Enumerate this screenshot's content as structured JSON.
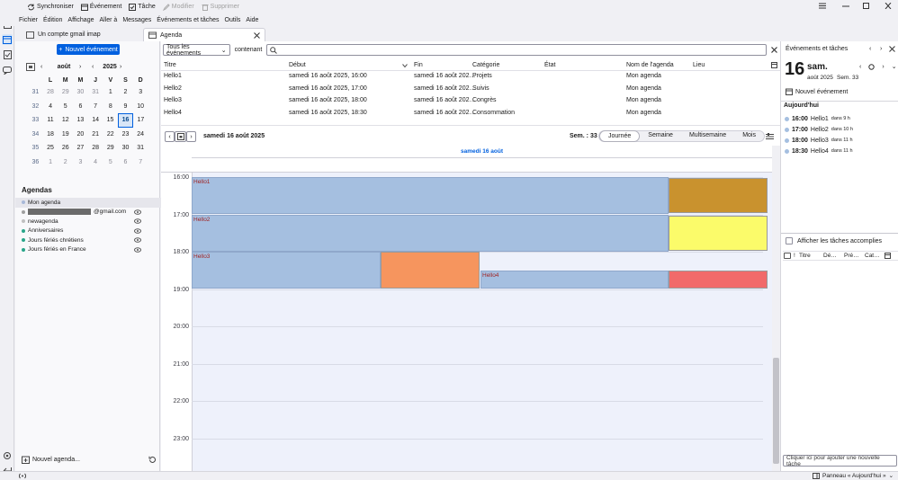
{
  "toolbar": {
    "sync": "Synchroniser",
    "event": "Événement",
    "task": "Tâche",
    "modify": "Modifier",
    "delete": "Supprimer"
  },
  "menu": [
    "Fichier",
    "Édition",
    "Affichage",
    "Aller à",
    "Messages",
    "Événements et tâches",
    "Outils",
    "Aide"
  ],
  "tabs": {
    "mail": "Un compte gmail imap",
    "agenda": "Agenda"
  },
  "sidebar": {
    "new_event": "Nouvel événement",
    "month": "août",
    "year": "2025",
    "weekdays": [
      "L",
      "M",
      "M",
      "J",
      "V",
      "S",
      "D"
    ],
    "weeks": [
      {
        "wk": "31",
        "days": [
          "28",
          "29",
          "30",
          "31",
          "1",
          "2",
          "3"
        ]
      },
      {
        "wk": "32",
        "days": [
          "4",
          "5",
          "6",
          "7",
          "8",
          "9",
          "10"
        ]
      },
      {
        "wk": "33",
        "days": [
          "11",
          "12",
          "13",
          "14",
          "15",
          "16",
          "17"
        ]
      },
      {
        "wk": "34",
        "days": [
          "18",
          "19",
          "20",
          "21",
          "22",
          "23",
          "24"
        ]
      },
      {
        "wk": "35",
        "days": [
          "25",
          "26",
          "27",
          "28",
          "29",
          "30",
          "31"
        ]
      },
      {
        "wk": "36",
        "days": [
          "1",
          "2",
          "3",
          "4",
          "5",
          "6",
          "7"
        ]
      }
    ],
    "agendas_title": "Agendas",
    "calendars": [
      {
        "name": "Mon agenda",
        "color": "#a8b8d8"
      },
      {
        "name": "@gmail.com",
        "color": "#a0a0a0"
      },
      {
        "name": "newagenda",
        "color": "#c0c0c0"
      },
      {
        "name": "Anniversaires",
        "color": "#2aa58a"
      },
      {
        "name": "Jours fériés chrétiens",
        "color": "#2aa58a"
      },
      {
        "name": "Jours fériés en France",
        "color": "#2aa58a"
      }
    ],
    "new_agenda": "Nouvel agenda..."
  },
  "filter": {
    "select": "Tous les événements",
    "containing": "contenant",
    "search_value": ""
  },
  "list": {
    "headers": [
      "Titre",
      "Début",
      "Fin",
      "Catégorie",
      "État",
      "Nom de l'agenda",
      "Lieu"
    ],
    "rows": [
      [
        "Hello1",
        "samedi 16 août 2025, 16:00",
        "samedi 16 août 202…",
        "Projets",
        "",
        "Mon agenda",
        ""
      ],
      [
        "Hello2",
        "samedi 16 août 2025, 17:00",
        "samedi 16 août 202…",
        "Suivis",
        "",
        "Mon agenda",
        ""
      ],
      [
        "Hello3",
        "samedi 16 août 2025, 18:00",
        "samedi 16 août 202…",
        "Congrès",
        "",
        "Mon agenda",
        ""
      ],
      [
        "Hello4",
        "samedi 16 août 2025, 18:30",
        "samedi 16 août 202…",
        "Consommation",
        "",
        "Mon agenda",
        ""
      ]
    ]
  },
  "view": {
    "date_label": "samedi 16 août 2025",
    "week_label": "Sem. : 33",
    "modes": [
      "Journée",
      "Semaine",
      "Multisemaine",
      "Mois"
    ],
    "active_mode": "Journée",
    "day_header": "samedi 16 août",
    "hours": [
      "16:00",
      "17:00",
      "18:00",
      "19:00",
      "20:00",
      "21:00",
      "22:00",
      "23:00"
    ],
    "events": [
      {
        "title": "Hello1",
        "color": "#a5bfe0"
      },
      {
        "title": "Hello2",
        "color": "#a5bfe0"
      },
      {
        "title": "Hello3",
        "color": "#a5bfe0"
      },
      {
        "title": "Hello4",
        "color": "#a5bfe0"
      }
    ],
    "category_colors": {
      "Projets": "#c9922e",
      "Suivis": "#fbfb6a",
      "Congrès": "#f6955e",
      "Consommation": "#f16a6a"
    }
  },
  "right": {
    "title": "Événements et tâches",
    "day_num": "16",
    "day_name": "sam.",
    "month_year": "août 2025",
    "week": "Sem. 33",
    "new_event": "Nouvel événement",
    "today": "Aujourd'hui",
    "items": [
      {
        "time": "16:00",
        "title": "Hello1",
        "in": "dans 9 h"
      },
      {
        "time": "17:00",
        "title": "Hello2",
        "in": "dans 10 h"
      },
      {
        "time": "18:00",
        "title": "Hello3",
        "in": "dans 11 h"
      },
      {
        "time": "18:30",
        "title": "Hello4",
        "in": "dans 11 h"
      }
    ],
    "show_done": "Afficher les tâches accomplies",
    "task_headers": [
      "Titre",
      "Dé…",
      "Pré…",
      "Cat…"
    ],
    "add_task_placeholder": "Cliquer ici pour ajouter une nouvelle tâche"
  },
  "status": {
    "panel": "Panneau « Aujourd'hui »"
  }
}
